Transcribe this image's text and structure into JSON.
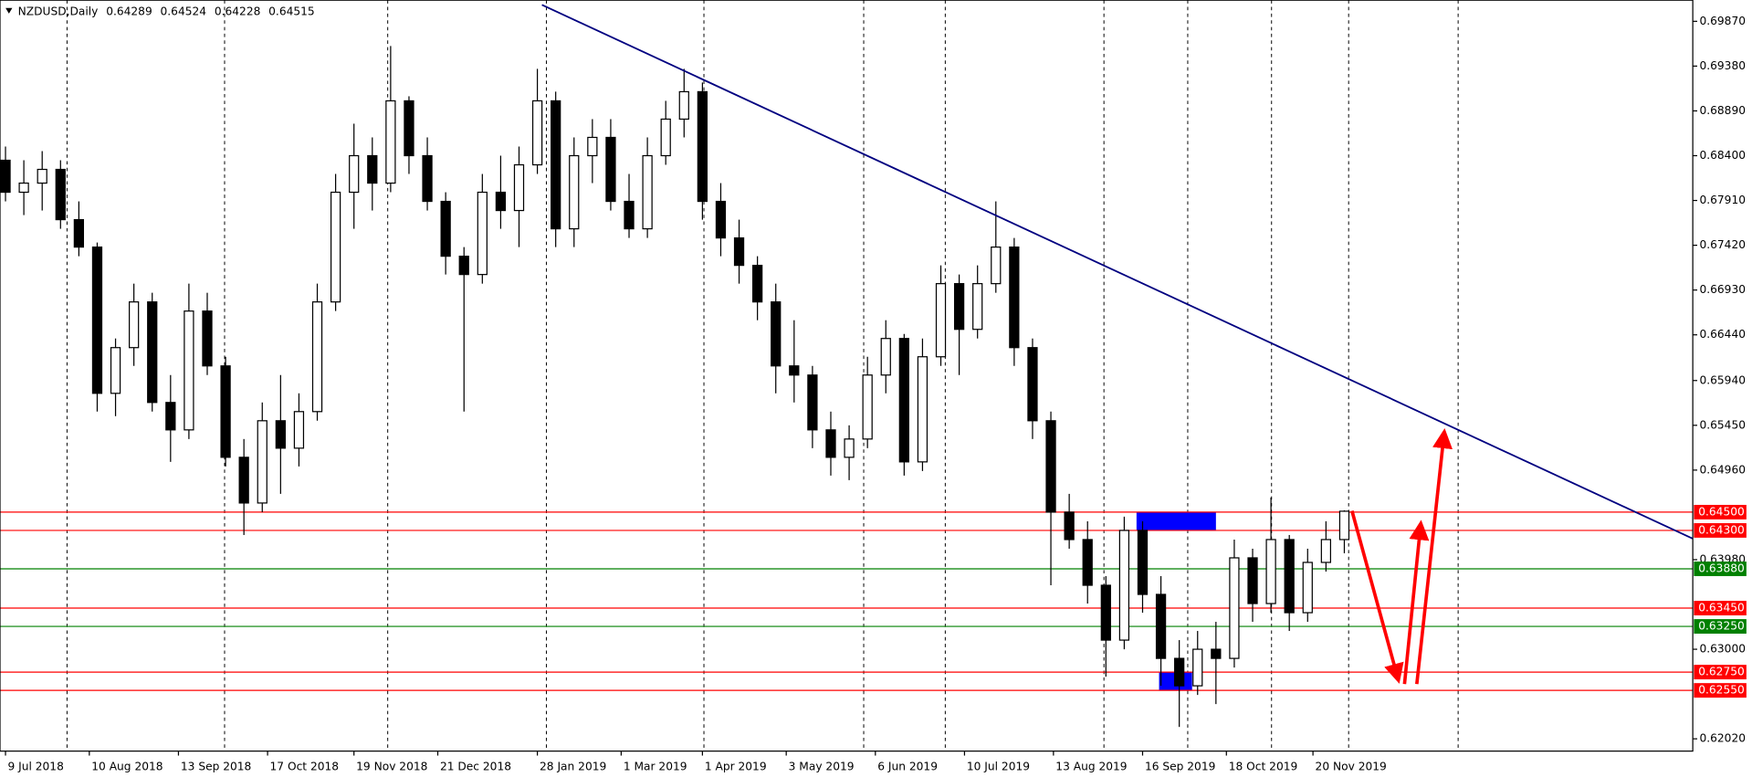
{
  "chart_data": {
    "type": "candlestick",
    "title": "NZDUSD,Daily",
    "header_values": [
      0.64289,
      0.64524,
      0.64228,
      0.64515
    ],
    "xlim": [
      -0.3,
      92
    ],
    "ylim": [
      0.6191,
      0.7004
    ],
    "xticks": [
      {
        "value": 0,
        "label": "9 Jul 2018"
      },
      {
        "value": 4.57,
        "label": "10 Aug 2018"
      },
      {
        "value": 9.43,
        "label": "13 Sep 2018"
      },
      {
        "value": 14.29,
        "label": "17 Oct 2018"
      },
      {
        "value": 19,
        "label": "19 Nov 2018"
      },
      {
        "value": 23.57,
        "label": "21 Dec 2018"
      },
      {
        "value": 29,
        "label": "28 Jan 2019"
      },
      {
        "value": 33.57,
        "label": "1 Mar 2019"
      },
      {
        "value": 38,
        "label": "1 Apr 2019"
      },
      {
        "value": 42.57,
        "label": "3 May 2019"
      },
      {
        "value": 47.43,
        "label": "6 Jun 2019"
      },
      {
        "value": 52.29,
        "label": "10 Jul 2019"
      },
      {
        "value": 57.14,
        "label": "13 Aug 2019"
      },
      {
        "value": 62,
        "label": "16 Sep 2019"
      },
      {
        "value": 66.57,
        "label": "18 Oct 2019"
      },
      {
        "value": 71.29,
        "label": "20 Nov 2019"
      }
    ],
    "yticks": [
      {
        "value": 0.6987,
        "label": "0.69870"
      },
      {
        "value": 0.6938,
        "label": "0.69380"
      },
      {
        "value": 0.6889,
        "label": "0.68890"
      },
      {
        "value": 0.684,
        "label": "0.68400"
      },
      {
        "value": 0.6791,
        "label": "0.67910"
      },
      {
        "value": 0.6742,
        "label": "0.67420"
      },
      {
        "value": 0.6693,
        "label": "0.66930"
      },
      {
        "value": 0.6644,
        "label": "0.66440"
      },
      {
        "value": 0.6594,
        "label": "0.65940"
      },
      {
        "value": 0.6545,
        "label": "0.65450"
      },
      {
        "value": 0.6496,
        "label": "0.64960"
      },
      {
        "value": 0.6398,
        "label": "0.63980"
      },
      {
        "value": 0.63,
        "label": "0.63000"
      },
      {
        "value": 0.6202,
        "label": "0.62020"
      }
    ],
    "x": [
      0,
      1,
      2,
      3,
      4,
      5,
      6,
      7,
      8,
      9,
      10,
      11,
      12,
      13,
      14,
      15,
      16,
      17,
      18,
      19,
      20,
      21,
      22,
      23,
      24,
      25,
      26,
      27,
      28,
      29,
      30,
      31,
      32,
      33,
      34,
      35,
      36,
      37,
      38,
      39,
      40,
      41,
      42,
      43,
      44,
      45,
      46,
      47,
      48,
      49,
      50,
      51,
      52,
      53,
      54,
      55,
      56,
      57,
      58,
      59,
      60,
      61,
      62,
      63,
      64,
      65,
      66,
      67,
      68,
      69,
      70,
      71,
      72,
      73
    ],
    "open": [
      0.6835,
      0.68,
      0.681,
      0.6825,
      0.677,
      0.674,
      0.658,
      0.663,
      0.668,
      0.657,
      0.654,
      0.667,
      0.661,
      0.651,
      0.646,
      0.655,
      0.652,
      0.656,
      0.668,
      0.68,
      0.684,
      0.681,
      0.69,
      0.684,
      0.679,
      0.673,
      0.671,
      0.68,
      0.678,
      0.683,
      0.69,
      0.676,
      0.684,
      0.686,
      0.679,
      0.676,
      0.684,
      0.688,
      0.691,
      0.679,
      0.675,
      0.672,
      0.668,
      0.661,
      0.66,
      0.654,
      0.651,
      0.653,
      0.66,
      0.664,
      0.6505,
      0.662,
      0.67,
      0.665,
      0.67,
      0.674,
      0.663,
      0.655,
      0.645,
      0.642,
      0.637,
      0.631,
      0.643,
      0.636,
      0.629,
      0.626,
      0.63,
      0.629,
      0.64,
      0.635,
      0.642,
      0.634,
      0.6395,
      0.642
    ],
    "high": [
      0.685,
      0.6835,
      0.6845,
      0.6835,
      0.679,
      0.6745,
      0.664,
      0.67,
      0.669,
      0.66,
      0.67,
      0.669,
      0.662,
      0.653,
      0.657,
      0.66,
      0.658,
      0.67,
      0.682,
      0.6875,
      0.686,
      0.696,
      0.6905,
      0.686,
      0.68,
      0.674,
      0.682,
      0.684,
      0.685,
      0.6935,
      0.691,
      0.686,
      0.688,
      0.688,
      0.682,
      0.686,
      0.69,
      0.6935,
      0.692,
      0.681,
      0.677,
      0.673,
      0.67,
      0.666,
      0.661,
      0.656,
      0.6545,
      0.662,
      0.666,
      0.6645,
      0.664,
      0.672,
      0.671,
      0.672,
      0.679,
      0.675,
      0.664,
      0.656,
      0.647,
      0.644,
      0.638,
      0.6445,
      0.644,
      0.638,
      0.631,
      0.632,
      0.633,
      0.642,
      0.641,
      0.6466,
      0.6425,
      0.641,
      0.644,
      0.6452
    ],
    "low": [
      0.679,
      0.6775,
      0.678,
      0.676,
      0.673,
      0.656,
      0.6555,
      0.661,
      0.656,
      0.6505,
      0.653,
      0.66,
      0.65,
      0.6425,
      0.645,
      0.647,
      0.65,
      0.655,
      0.667,
      0.676,
      0.678,
      0.68,
      0.682,
      0.678,
      0.671,
      0.656,
      0.67,
      0.676,
      0.674,
      0.682,
      0.674,
      0.674,
      0.681,
      0.678,
      0.675,
      0.675,
      0.683,
      0.686,
      0.677,
      0.673,
      0.67,
      0.666,
      0.658,
      0.657,
      0.652,
      0.649,
      0.6485,
      0.652,
      0.658,
      0.649,
      0.6495,
      0.661,
      0.66,
      0.664,
      0.669,
      0.661,
      0.653,
      0.637,
      0.641,
      0.635,
      0.627,
      0.63,
      0.634,
      0.626,
      0.6215,
      0.625,
      0.624,
      0.628,
      0.633,
      0.634,
      0.632,
      0.633,
      0.6385,
      0.6405
    ],
    "close": [
      0.68,
      0.681,
      0.6825,
      0.677,
      0.674,
      0.658,
      0.663,
      0.668,
      0.657,
      0.654,
      0.667,
      0.661,
      0.651,
      0.646,
      0.655,
      0.652,
      0.656,
      0.668,
      0.68,
      0.684,
      0.681,
      0.69,
      0.684,
      0.679,
      0.673,
      0.671,
      0.68,
      0.678,
      0.683,
      0.69,
      0.676,
      0.684,
      0.686,
      0.679,
      0.676,
      0.684,
      0.688,
      0.691,
      0.679,
      0.675,
      0.672,
      0.668,
      0.661,
      0.66,
      0.654,
      0.651,
      0.653,
      0.66,
      0.664,
      0.6505,
      0.662,
      0.67,
      0.665,
      0.67,
      0.674,
      0.663,
      0.655,
      0.645,
      0.642,
      0.637,
      0.631,
      0.643,
      0.636,
      0.629,
      0.626,
      0.63,
      0.629,
      0.64,
      0.635,
      0.642,
      0.634,
      0.6395,
      0.642,
      0.6451
    ],
    "levels": [
      {
        "value": 0.645,
        "label": "0.64500",
        "color": "#ff0000"
      },
      {
        "value": 0.643,
        "label": "0.64300",
        "color": "#ff0000"
      },
      {
        "value": 0.6388,
        "label": "0.63880",
        "color": "#008000"
      },
      {
        "value": 0.6345,
        "label": "0.63450",
        "color": "#ff0000"
      },
      {
        "value": 0.6325,
        "label": "0.63250",
        "color": "#008000"
      },
      {
        "value": 0.6275,
        "label": "0.62750",
        "color": "#ff0000"
      },
      {
        "value": 0.6255,
        "label": "0.62550",
        "color": "#ff0000"
      }
    ],
    "zones": [
      {
        "x": [
          61.67,
          66.0
        ],
        "y": [
          0.643,
          0.645
        ],
        "color": "#0000ff"
      },
      {
        "x": [
          62.9,
          64.7
        ],
        "y": [
          0.6255,
          0.6275
        ],
        "color": "#0000ff"
      }
    ],
    "trendline": {
      "x": [
        29.25,
        92
      ],
      "y": [
        0.7005,
        0.6421
      ],
      "color": "#000080"
    }
  }
}
